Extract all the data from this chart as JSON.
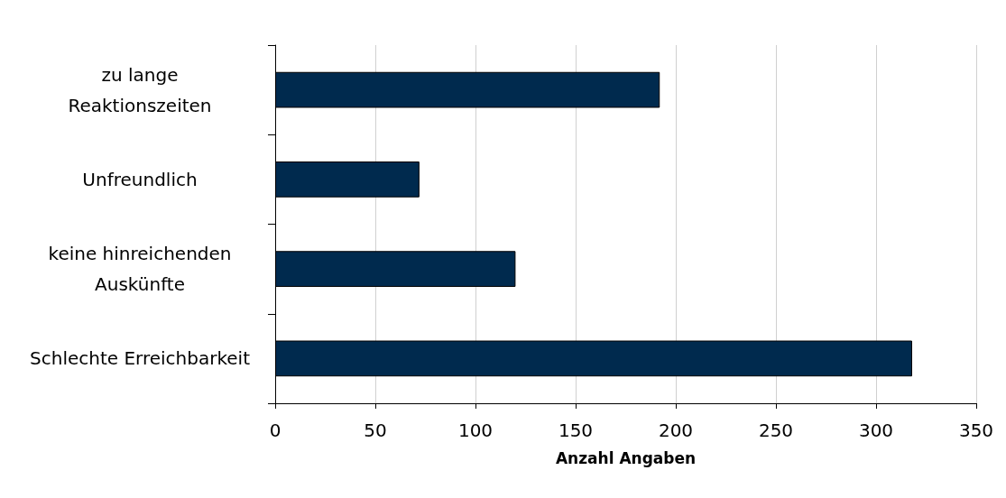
{
  "chart_data": {
    "type": "bar",
    "orientation": "horizontal",
    "xlabel": "Anzahl Angaben",
    "categories": [
      "zu lange\nReaktionszeiten",
      "Unfreundlich",
      "keine hinreichenden\nAuskünfte",
      "Schlechte Erreichbarkeit"
    ],
    "values": [
      192,
      72,
      120,
      318
    ],
    "color": "#002a4e",
    "xlim": [
      0,
      350
    ],
    "xticks": [
      0,
      50,
      100,
      150,
      200,
      250,
      300,
      350
    ],
    "grid": "x"
  }
}
